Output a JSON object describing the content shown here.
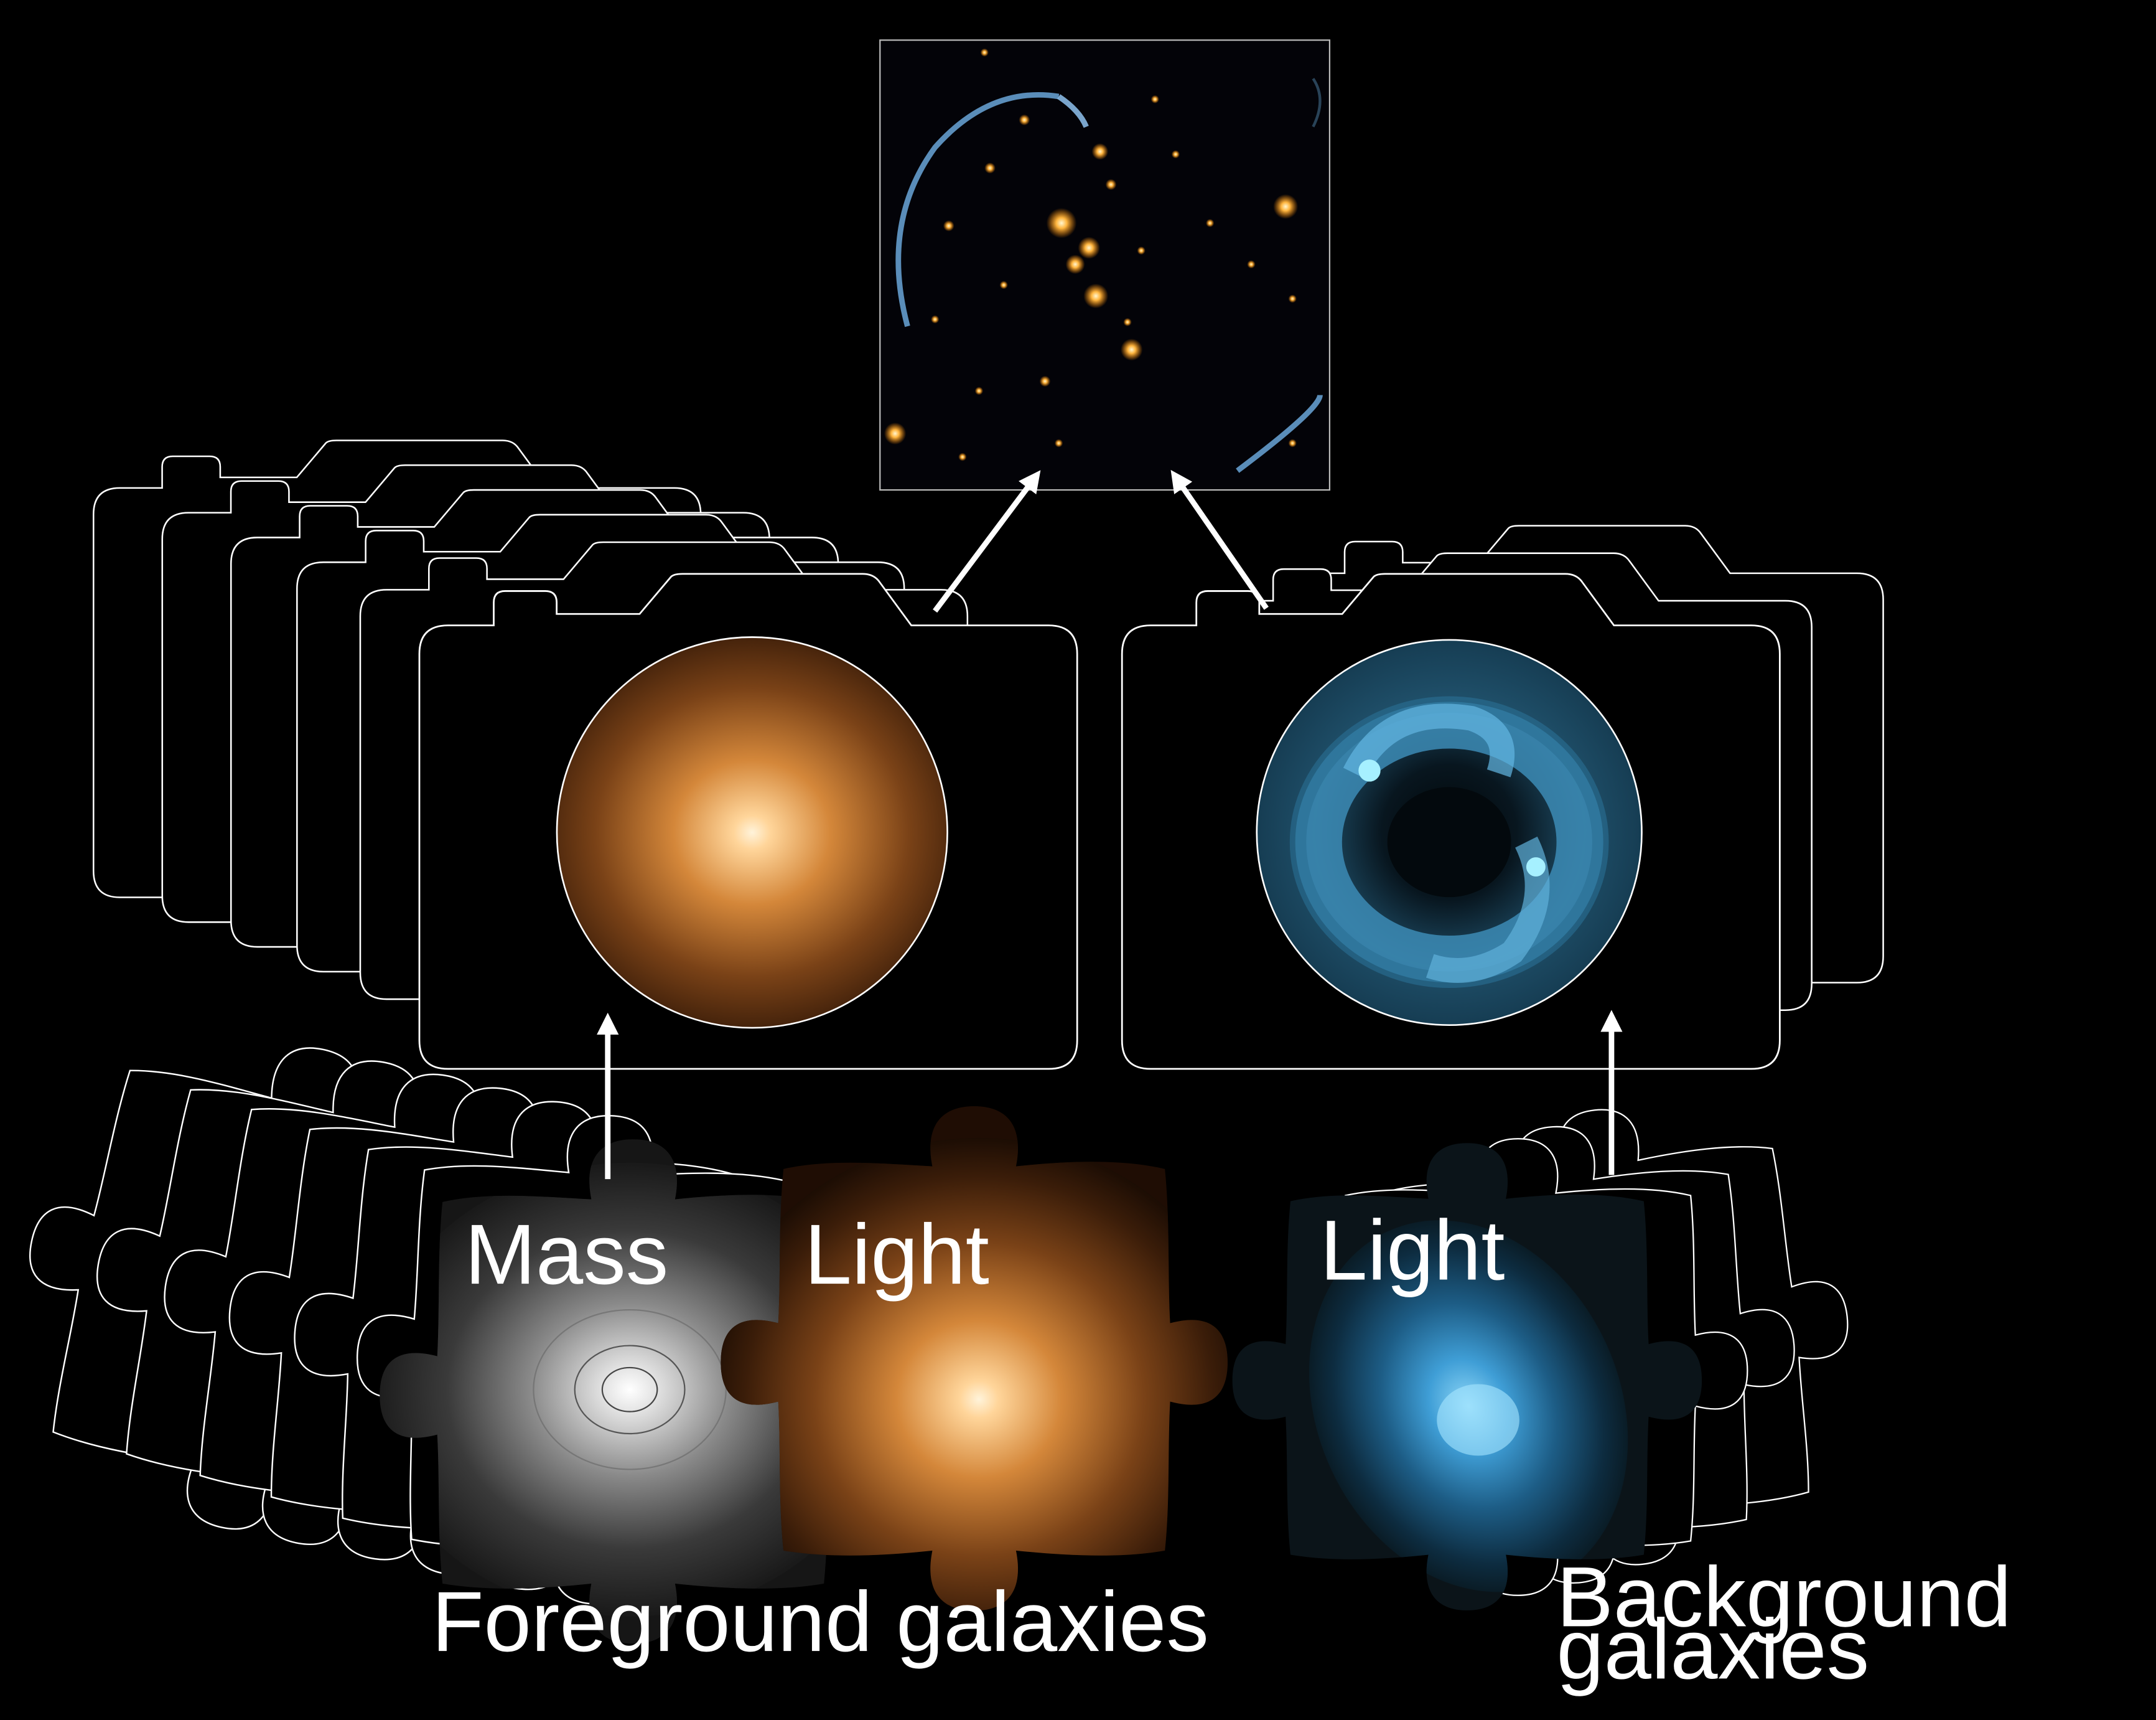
{
  "colors": {
    "background": "#000000",
    "outline": "#ffffff",
    "foreground_light": "#f0a250",
    "background_light": "#5cb6e8",
    "mass": "#d9d9d9"
  },
  "labels": {
    "mass": "Mass",
    "fg_light": "Light",
    "bg_light": "Light",
    "foreground_caption": "Foreground galaxies",
    "background_caption_line1": "Background",
    "background_caption_line2": "galaxies"
  },
  "icons": {
    "camera": "camera-outline-icon",
    "puzzle": "puzzle-piece-icon",
    "arrow": "arrow-up-icon"
  },
  "stack_counts": {
    "foreground_cameras": 6,
    "background_cameras": 3,
    "foreground_puzzle_outlines": 6,
    "background_puzzle_outlines": 3
  }
}
